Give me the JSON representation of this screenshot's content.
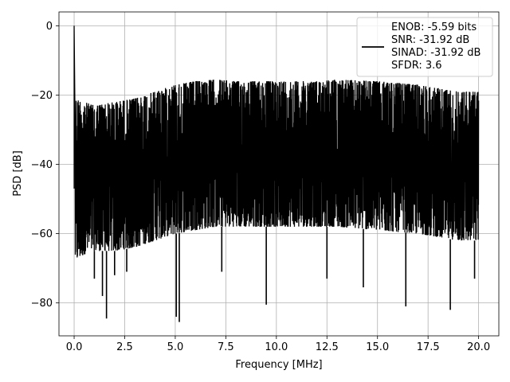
{
  "chart_data": {
    "type": "line",
    "xlabel": "Frequency [MHz]",
    "ylabel": "PSD [dB]",
    "xlim": [
      -0.75,
      21.0
    ],
    "ylim": [
      -89.5,
      4.0
    ],
    "xticks": [
      0.0,
      2.5,
      5.0,
      7.5,
      10.0,
      12.5,
      15.0,
      17.5,
      20.0
    ],
    "xtick_labels": [
      "0.0",
      "2.5",
      "5.0",
      "7.5",
      "10.0",
      "12.5",
      "15.0",
      "17.5",
      "20.0"
    ],
    "yticks": [
      0,
      -20,
      -40,
      -60,
      -80
    ],
    "ytick_labels": [
      "0",
      "−20",
      "−40",
      "−60",
      "−80"
    ],
    "grid": true,
    "legend_position": "top-right",
    "series": [
      {
        "color": "#000000",
        "legend_lines": [
          "ENOB: -5.59 bits",
          "SNR: -31.92 dB",
          "SINAD: -31.92 dB",
          "SFDR: 3.6"
        ],
        "upper_envelope": [
          [
            0.0,
            0
          ],
          [
            0.05,
            -21
          ],
          [
            0.5,
            -22
          ],
          [
            1.0,
            -23
          ],
          [
            2.0,
            -22
          ],
          [
            3.0,
            -21
          ],
          [
            4.0,
            -19
          ],
          [
            5.0,
            -17
          ],
          [
            6.0,
            -16
          ],
          [
            7.0,
            -15.5
          ],
          [
            8.0,
            -16
          ],
          [
            10.0,
            -16
          ],
          [
            12.0,
            -16
          ],
          [
            13.0,
            -15.5
          ],
          [
            15.0,
            -16
          ],
          [
            16.0,
            -16.5
          ],
          [
            17.0,
            -17
          ],
          [
            18.0,
            -18
          ],
          [
            19.0,
            -19
          ],
          [
            20.0,
            -19
          ]
        ],
        "lower_envelope": [
          [
            0.0,
            -47
          ],
          [
            0.05,
            -68
          ],
          [
            0.5,
            -66
          ],
          [
            1.0,
            -65
          ],
          [
            2.0,
            -65
          ],
          [
            3.0,
            -64
          ],
          [
            4.0,
            -62
          ],
          [
            5.0,
            -60
          ],
          [
            7.0,
            -58
          ],
          [
            10.0,
            -58
          ],
          [
            13.0,
            -58
          ],
          [
            15.0,
            -59
          ],
          [
            17.0,
            -60
          ],
          [
            19.0,
            -62
          ],
          [
            20.0,
            -62
          ]
        ],
        "spikes": [
          [
            1.0,
            -73
          ],
          [
            1.4,
            -78
          ],
          [
            1.6,
            -84.5
          ],
          [
            2.0,
            -72
          ],
          [
            2.6,
            -71
          ],
          [
            5.05,
            -84
          ],
          [
            5.2,
            -85.5
          ],
          [
            7.3,
            -71
          ],
          [
            9.5,
            -80.5
          ],
          [
            12.5,
            -73
          ],
          [
            14.3,
            -75.5
          ],
          [
            16.4,
            -81
          ],
          [
            18.6,
            -82
          ],
          [
            19.8,
            -73
          ]
        ]
      }
    ]
  }
}
